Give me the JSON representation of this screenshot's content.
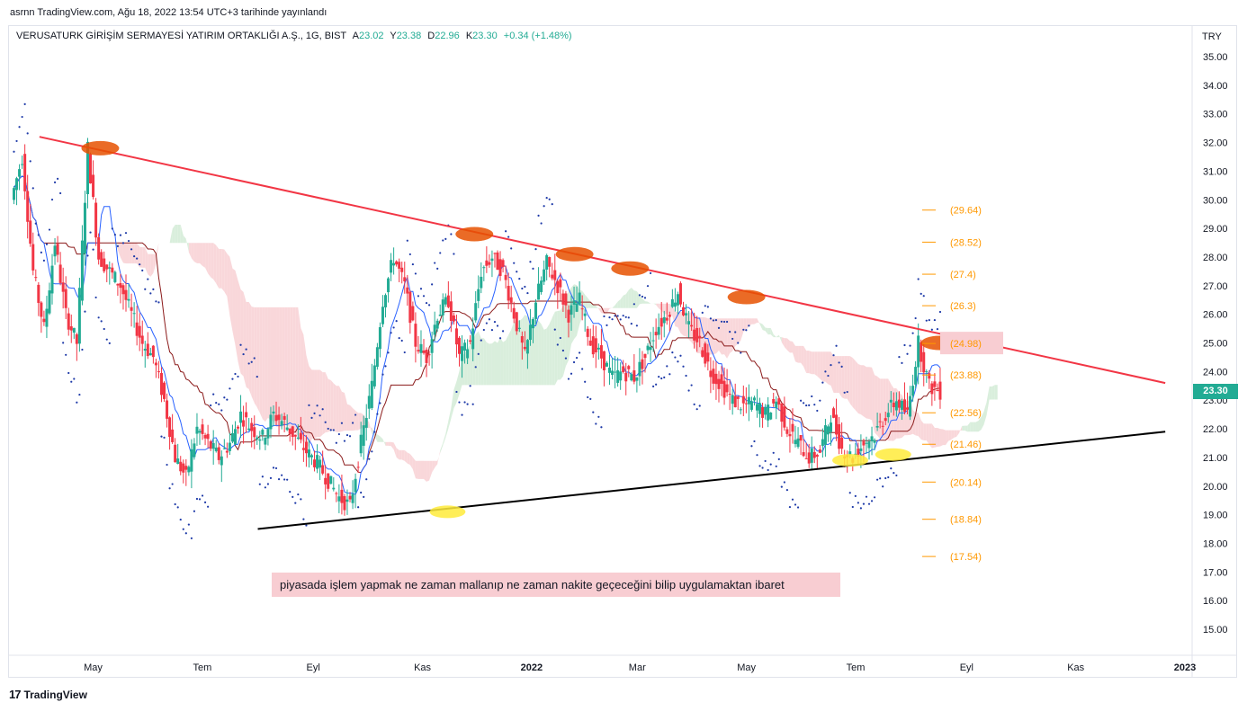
{
  "header": {
    "publish_line": "asrnn TradingView.com, Ağu 18, 2022 13:54 UTC+3 tarihinde yayınlandı"
  },
  "legend": {
    "symbol": "VERUSATURK GİRİŞİM SERMAYESİ YATIRIM ORTAKLIĞI A.Ş., 1G, BIST",
    "open_label": "A",
    "open": "23.02",
    "high_label": "Y",
    "high": "23.38",
    "low_label": "D",
    "low": "22.96",
    "close_label": "K",
    "close": "23.30",
    "change": "+0.34 (+1.48%)"
  },
  "price_axis": {
    "currency": "TRY",
    "last_price": "23.30"
  },
  "note": {
    "text": "piyasada işlem yapmak  ne zaman mallanıp ne zaman nakite geçeceğini bilip uygulamaktan ibaret"
  },
  "footer": {
    "brand": "TradingView",
    "logo": "17"
  },
  "colors": {
    "up": "#22ab94",
    "down": "#f23645",
    "resistance": "#f23645",
    "support": "#000000",
    "fib": "#ff9800",
    "cloud_bear": "#f8d3d6",
    "cloud_bull": "#d5ecd8",
    "psar": "#1e3aa8",
    "kijun": "#8b1a1a",
    "tenkan": "#2962ff",
    "touch_high": "#e65100",
    "touch_low": "#ffeb3b"
  },
  "chart_data": {
    "type": "line",
    "title": "VERUSATURK GİRİŞİM SERMAYESİ YATIRIM ORTAKLIĞI A.Ş., 1G, BIST",
    "xlabel": "",
    "ylabel": "",
    "x_ticks": [
      "May",
      "Tem",
      "Eyl",
      "Kas",
      "2022",
      "Mar",
      "May",
      "Tem",
      "Eyl",
      "Kas",
      "2023"
    ],
    "y_ticks": [
      "35.00",
      "34.00",
      "33.00",
      "32.00",
      "31.00",
      "30.00",
      "29.00",
      "28.00",
      "27.00",
      "26.00",
      "25.00",
      "24.00",
      "23.00",
      "22.00",
      "21.00",
      "20.00",
      "19.00",
      "18.00",
      "17.00",
      "16.00",
      "15.00"
    ],
    "ylim": [
      14.3,
      35.6
    ],
    "fib_levels": [
      "(29.64)",
      "(28.52)",
      "(27.4)",
      "(26.3)",
      "(24.98)",
      "(23.88)",
      "(22.56)",
      "(21.46)",
      "(20.14)",
      "(18.84)",
      "(17.54)"
    ],
    "fib_values": [
      29.64,
      28.52,
      27.4,
      26.3,
      24.98,
      23.88,
      22.56,
      21.46,
      20.14,
      18.84,
      17.54
    ],
    "series": [
      {
        "values": [
          30.0,
          31.5,
          27.5,
          25.5,
          28.5,
          26.0,
          25.0,
          31.8,
          28.0,
          27.5,
          27.0,
          26.0,
          25.0,
          24.5,
          23.0,
          21.0,
          20.3,
          22.0,
          21.5,
          21.0,
          21.5,
          22.5,
          22.0,
          21.7,
          22.5,
          22.2,
          21.7,
          21.2,
          20.8,
          20.2,
          19.6,
          19.3,
          21.5,
          23.5,
          26.5,
          28.0,
          27.0,
          25.0,
          24.5,
          26.0,
          26.5,
          24.5,
          25.0,
          27.5,
          28.0,
          27.5,
          26.0,
          24.5,
          26.5,
          27.8,
          27.0,
          26.0,
          26.5,
          25.0,
          24.5,
          23.8,
          24.0,
          23.8,
          24.5,
          25.5,
          26.0,
          26.8,
          25.5,
          25.0,
          24.0,
          23.5,
          23.0,
          22.8,
          22.9,
          22.5,
          23.0,
          22.0,
          21.5,
          21.0,
          21.2,
          22.5,
          21.3,
          21.0,
          21.5,
          21.8,
          22.5,
          23.0,
          22.5,
          25.0,
          23.5,
          23.3
        ]
      }
    ],
    "x_range": [
      "2021-03-15",
      "2023-01-05"
    ],
    "annotations": {
      "resistance_line": {
        "from": [
          "2021-04-01",
          32.2
        ],
        "to": [
          "2022-12-21",
          23.6
        ]
      },
      "support_line": {
        "from": [
          "2021-08-01",
          18.5
        ],
        "to": [
          "2022-12-21",
          21.9
        ]
      },
      "touch_points_high": [
        [
          "2021-05-05",
          31.8
        ],
        [
          "2021-11-30",
          28.8
        ],
        [
          "2022-01-25",
          28.1
        ],
        [
          "2022-02-25",
          27.6
        ],
        [
          "2022-05-01",
          26.6
        ],
        [
          "2022-08-17",
          25.0
        ]
      ],
      "touch_points_low": [
        [
          "2021-11-15",
          19.1
        ],
        [
          "2022-06-28",
          20.9
        ],
        [
          "2022-07-22",
          21.1
        ]
      ]
    }
  }
}
